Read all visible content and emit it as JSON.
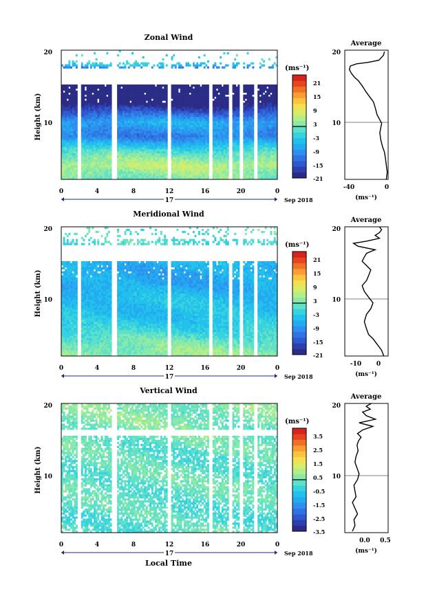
{
  "x_axis": {
    "ticks": [
      "0",
      "4",
      "8",
      "12",
      "16",
      "20",
      "0"
    ],
    "day_label": "17",
    "date_label": "Sep 2018",
    "xlabel": "Local Time"
  },
  "colorbar_colors": [
    "#2b2c86",
    "#2d3fae",
    "#2f59cf",
    "#2f74e2",
    "#2d8fee",
    "#23aaf0",
    "#22c1ec",
    "#37d2e0",
    "#5ee0c9",
    "#8ae9a8",
    "#b4ee86",
    "#d8ec69",
    "#f3df51",
    "#fcc33f",
    "#f99c31",
    "#f07027",
    "#e5451f",
    "#d7241a"
  ],
  "panels": [
    {
      "title": "Zonal Wind",
      "ylabel": "Height (km)",
      "yticks": [
        "10",
        "20"
      ],
      "cbar_unit": "(ms⁻¹)",
      "cbar_ticks": [
        "21",
        "15",
        "9",
        "3",
        "-3",
        "-9",
        "-15",
        "-21"
      ],
      "avg_title": "Average",
      "avg_xticks": [
        "-40",
        "0"
      ],
      "avg_unit": "(ms⁻¹)",
      "avg_yticks": [
        "10",
        "20"
      ]
    },
    {
      "title": "Meridional Wind",
      "ylabel": "Height (km)",
      "yticks": [
        "10",
        "20"
      ],
      "cbar_unit": "(ms⁻¹)",
      "cbar_ticks": [
        "21",
        "15",
        "9",
        "3",
        "-3",
        "-9",
        "-15",
        "-21"
      ],
      "avg_title": "Average",
      "avg_xticks": [
        "-10",
        "0"
      ],
      "avg_unit": "(ms⁻¹)",
      "avg_yticks": [
        "10",
        "20"
      ]
    },
    {
      "title": "Vertical Wind",
      "ylabel": "Height (km)",
      "yticks": [
        "10",
        "20"
      ],
      "cbar_unit": "(ms⁻¹)",
      "cbar_ticks": [
        "3.5",
        "2.5",
        "1.5",
        "0.5",
        "-0.5",
        "-1.5",
        "-2.5",
        "-3.5"
      ],
      "avg_title": "Average",
      "avg_xticks": [
        "0.0",
        "0.5"
      ],
      "avg_unit": "(ms⁻¹)",
      "avg_yticks": [
        "10",
        "20"
      ]
    }
  ],
  "chart_data": [
    {
      "type": "heatmap",
      "title": "Zonal Wind",
      "ylabel": "Height (km)",
      "xlabel": "Local Time",
      "xlim": [
        0,
        24
      ],
      "ylim": [
        2,
        20
      ],
      "value_range": [
        -21,
        21
      ],
      "colorbar_unit": "ms-1",
      "data_gaps_hours": [
        [
          1.8,
          2.1
        ],
        [
          5.6,
          6.3
        ],
        [
          11.8,
          12.2
        ],
        [
          16.4,
          16.8
        ],
        [
          18.6,
          18.9
        ],
        [
          19.9,
          20.2
        ],
        [
          21.4,
          21.8
        ]
      ],
      "mean_speed_by_height": {
        "heights_km": [
          2,
          4,
          6,
          8,
          10,
          12,
          14,
          16,
          18
        ],
        "values": [
          0,
          4,
          -2,
          -12,
          -8,
          -18,
          -28,
          -38,
          -4
        ]
      }
    },
    {
      "type": "line",
      "title": "Average",
      "xlabel": "ms-1",
      "ylabel": "Height (km)",
      "xlim": [
        -45,
        2
      ],
      "ylim": [
        2,
        20
      ],
      "series": [
        {
          "x": [
            0,
            1,
            0,
            -1,
            -2,
            -4,
            -6,
            -7,
            -6,
            -5,
            -7,
            -10,
            -12,
            -14,
            -18,
            -22,
            -26,
            -30,
            -35,
            -38,
            -40,
            -39,
            -32,
            -20,
            -8,
            -3,
            -2
          ],
          "y": [
            2,
            3,
            4,
            5,
            5.8,
            6.5,
            7.5,
            8.5,
            9.2,
            9.8,
            10.3,
            11,
            12,
            12.8,
            13.5,
            14.2,
            15,
            15.7,
            16.3,
            16.8,
            17.3,
            17.8,
            18.1,
            18.3,
            18.6,
            19.3,
            19.8
          ]
        }
      ]
    },
    {
      "type": "heatmap",
      "title": "Meridional Wind",
      "ylabel": "Height (km)",
      "xlabel": "Local Time",
      "xlim": [
        0,
        24
      ],
      "ylim": [
        2,
        20
      ],
      "value_range": [
        -21,
        21
      ],
      "colorbar_unit": "ms-1",
      "data_gaps_hours": [
        [
          1.8,
          2.1
        ],
        [
          5.6,
          6.3
        ],
        [
          11.8,
          12.2
        ],
        [
          16.4,
          16.8
        ],
        [
          18.6,
          18.9
        ],
        [
          19.9,
          20.2
        ],
        [
          21.4,
          21.8
        ]
      ],
      "mean_speed_by_height": {
        "heights_km": [
          2,
          4,
          6,
          8,
          10,
          12,
          14,
          16,
          18
        ],
        "values": [
          2,
          0,
          -4,
          -6,
          -6,
          -8,
          -8,
          -6,
          -2
        ]
      }
    },
    {
      "type": "line",
      "title": "Average",
      "xlabel": "ms-1",
      "ylabel": "Height (km)",
      "xlim": [
        -16,
        4
      ],
      "ylim": [
        2,
        20
      ],
      "series": [
        {
          "x": [
            2,
            1,
            -1,
            -3,
            -5,
            -6,
            -7,
            -6,
            -4,
            -3,
            -5,
            -7,
            -8,
            -6,
            -5,
            -4,
            -6,
            -8,
            -7,
            -6,
            -2,
            -10,
            -12,
            -6,
            0,
            -2,
            0,
            1,
            0
          ],
          "y": [
            2,
            2.8,
            3.6,
            4.4,
            5,
            5.8,
            6.8,
            7.8,
            8.6,
            9.4,
            10.2,
            11,
            11.8,
            12.5,
            13.2,
            14,
            14.6,
            15.2,
            15.8,
            16.3,
            16.8,
            17.3,
            17.7,
            18,
            18.4,
            18.8,
            19.2,
            19.6,
            20
          ]
        }
      ]
    },
    {
      "type": "heatmap",
      "title": "Vertical Wind",
      "ylabel": "Height (km)",
      "xlabel": "Local Time",
      "xlim": [
        0,
        24
      ],
      "ylim": [
        2,
        20
      ],
      "value_range": [
        -3.5,
        3.5
      ],
      "colorbar_unit": "ms-1",
      "data_gaps_hours": [
        [
          1.8,
          2.1
        ],
        [
          5.6,
          6.3
        ],
        [
          11.8,
          12.2
        ],
        [
          16.4,
          16.8
        ],
        [
          18.6,
          18.9
        ],
        [
          19.9,
          20.2
        ],
        [
          21.4,
          21.8
        ]
      ],
      "mean_speed_by_height": {
        "heights_km": [
          2,
          4,
          6,
          8,
          10,
          12,
          14,
          16,
          18
        ],
        "values": [
          -0.2,
          -0.3,
          -0.2,
          -0.1,
          -0.1,
          -0.2,
          -0.1,
          0.0,
          0.1
        ]
      }
    },
    {
      "type": "line",
      "title": "Average",
      "xlabel": "ms-1",
      "ylabel": "Height (km)",
      "xlim": [
        -0.3,
        0.55
      ],
      "ylim": [
        2,
        20
      ],
      "series": [
        {
          "x": [
            -0.15,
            -0.1,
            -0.12,
            -0.05,
            -0.1,
            -0.15,
            -0.08,
            -0.1,
            -0.12,
            -0.05,
            -0.02,
            -0.06,
            -0.1,
            -0.08,
            -0.04,
            -0.06,
            -0.03,
            0.02,
            -0.05,
            0.05,
            0.25,
            -0.02,
            0.3,
            0.12,
            0.05,
            0.2,
            0.12,
            0.22
          ],
          "y": [
            2.2,
            3,
            3.8,
            4.6,
            5.4,
            6.2,
            7,
            7.8,
            8.6,
            9.4,
            10.2,
            11,
            11.8,
            12.6,
            13.4,
            14.2,
            14.8,
            15.3,
            15.8,
            16.3,
            16.8,
            17.3,
            17.8,
            18.3,
            18.8,
            19.2,
            19.6,
            20
          ]
        }
      ]
    }
  ]
}
